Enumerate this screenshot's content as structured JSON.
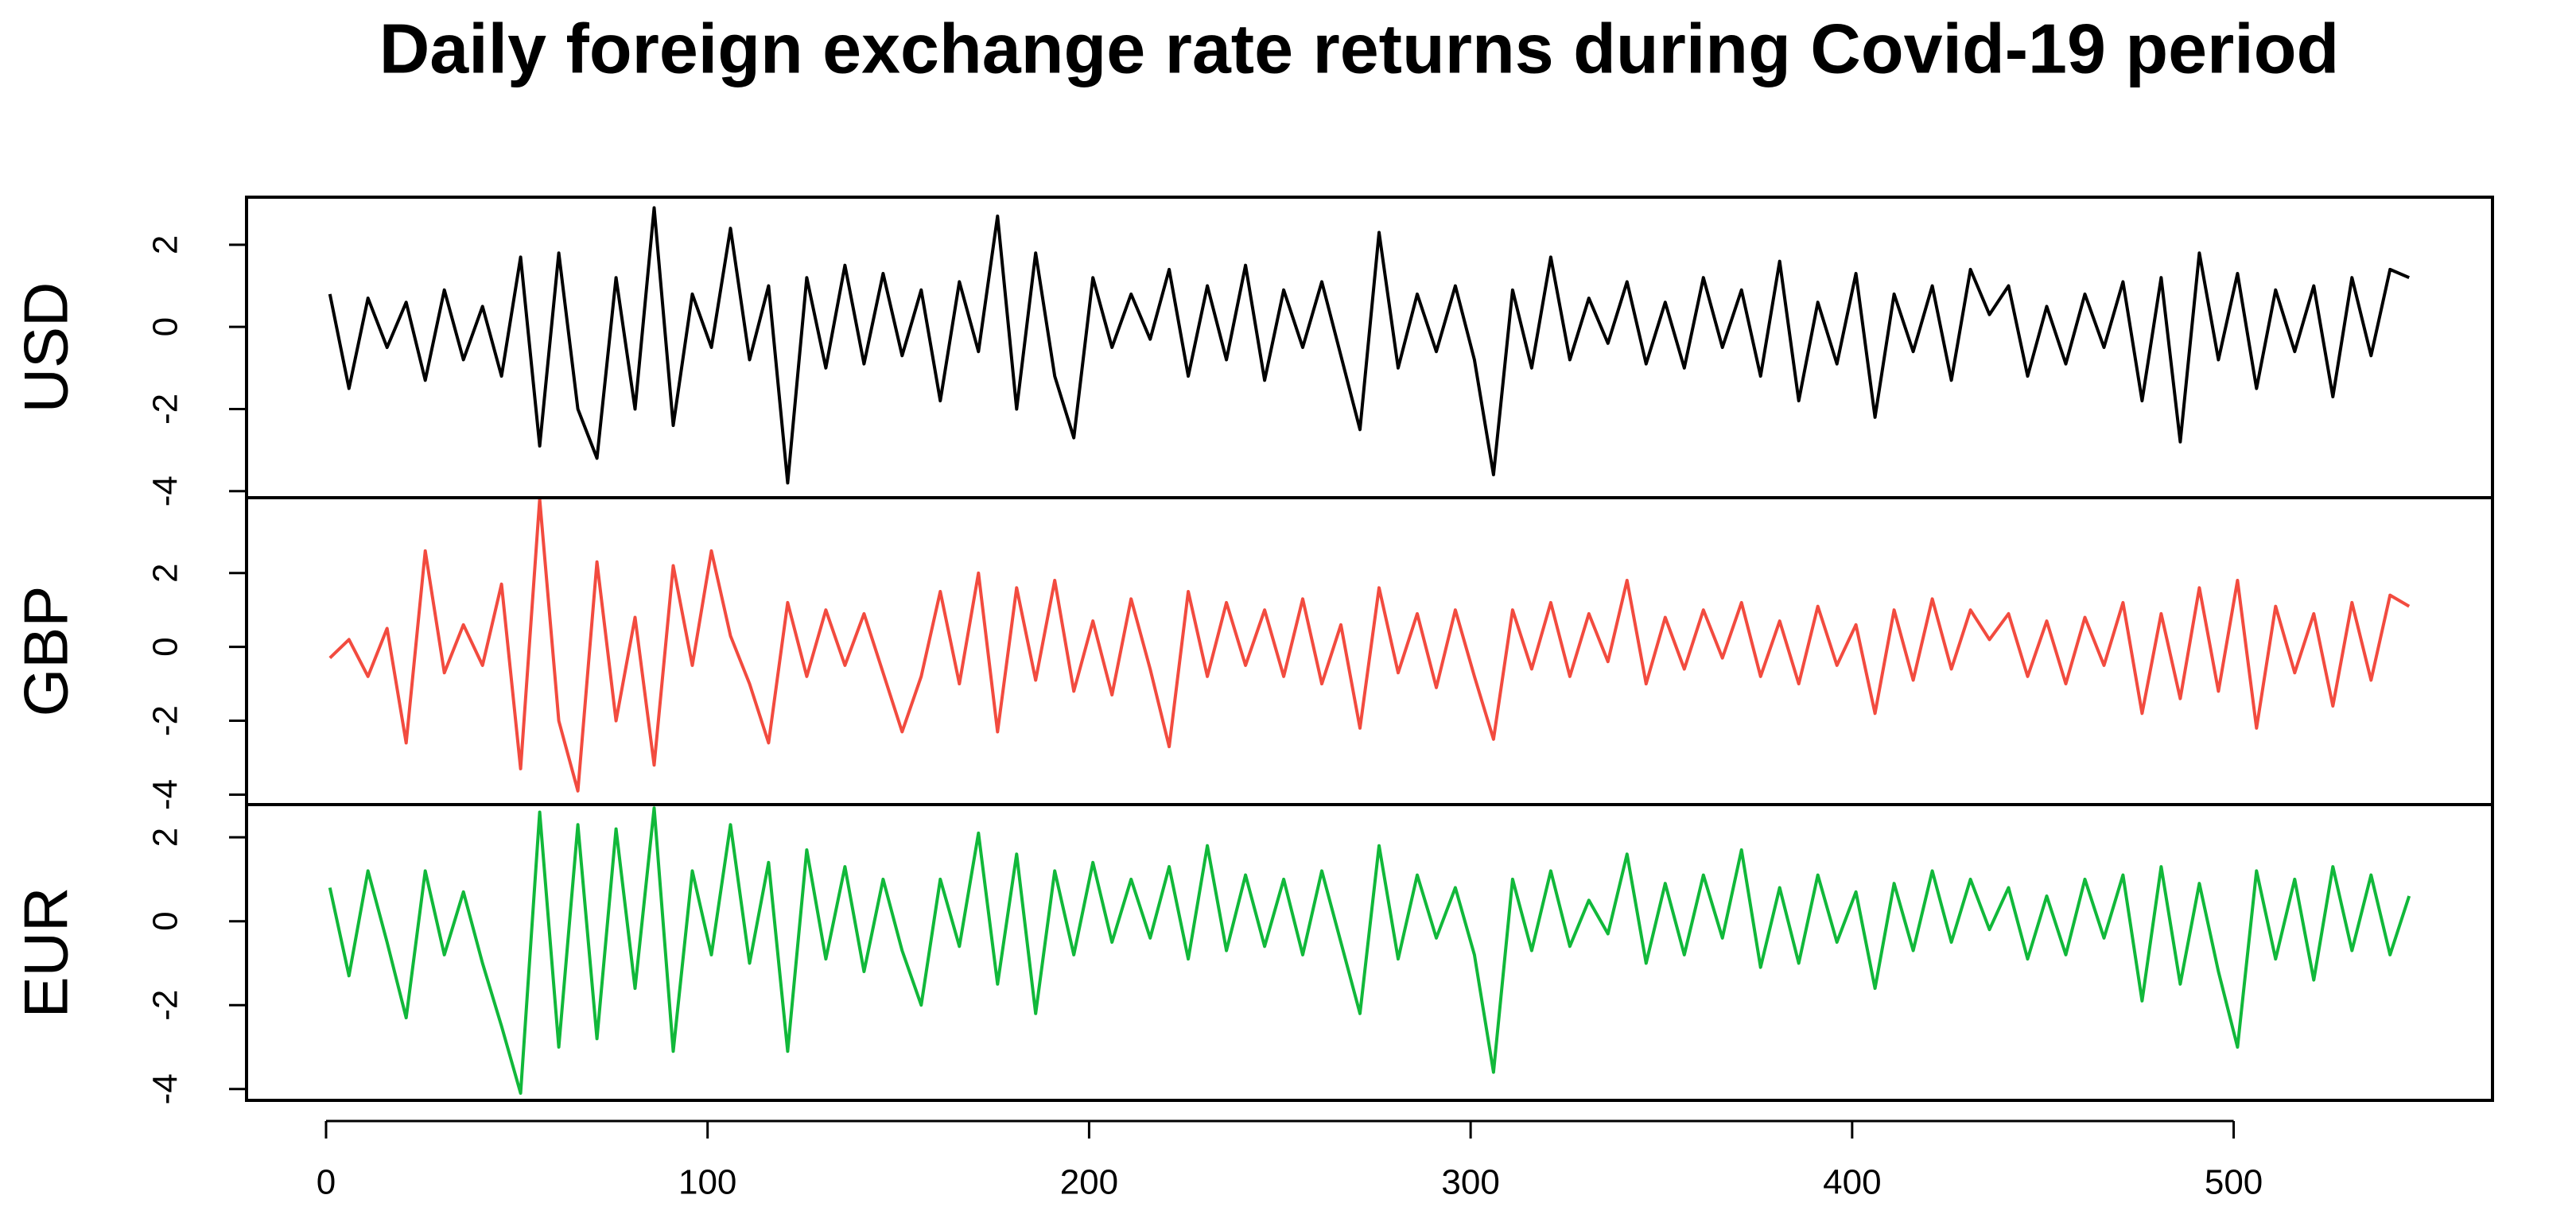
{
  "chart_data": {
    "type": "line",
    "title": "Daily foreign exchange rate returns during Covid-19 period",
    "x": [
      1,
      6,
      11,
      16,
      21,
      26,
      31,
      36,
      41,
      46,
      51,
      56,
      61,
      66,
      71,
      76,
      81,
      86,
      91,
      96,
      101,
      106,
      111,
      116,
      121,
      126,
      131,
      136,
      141,
      146,
      151,
      156,
      161,
      166,
      171,
      176,
      181,
      186,
      191,
      196,
      201,
      206,
      211,
      216,
      221,
      226,
      231,
      236,
      241,
      246,
      251,
      256,
      261,
      266,
      271,
      276,
      281,
      286,
      291,
      296,
      301,
      306,
      311,
      316,
      321,
      326,
      331,
      336,
      341,
      346,
      351,
      356,
      361,
      366,
      371,
      376,
      381,
      386,
      391,
      396,
      401,
      406,
      411,
      416,
      421,
      426,
      431,
      436,
      441,
      446,
      451,
      456,
      461,
      466,
      471,
      476,
      481,
      486,
      491,
      496,
      501,
      506,
      511,
      516,
      521,
      526,
      531,
      536,
      541,
      546
    ],
    "xlim": [
      -20.84,
      567.84
    ],
    "xticks": [
      0,
      100,
      200,
      300,
      400,
      500
    ],
    "series": [
      {
        "name": "USD",
        "color": "#000000",
        "ylim": [
          -4.16,
          3.16
        ],
        "yticks": [
          -4,
          -2,
          0,
          2
        ],
        "values": [
          0.8,
          -1.5,
          0.7,
          -0.5,
          0.6,
          -1.3,
          0.9,
          -0.8,
          0.5,
          -1.2,
          1.7,
          -2.9,
          1.8,
          -2.0,
          -3.2,
          1.2,
          -2.0,
          2.9,
          -2.4,
          0.8,
          -0.5,
          2.4,
          -0.8,
          1.0,
          -3.8,
          1.2,
          -1.0,
          1.5,
          -0.9,
          1.3,
          -0.7,
          0.9,
          -1.8,
          1.1,
          -0.6,
          2.7,
          -2.0,
          1.8,
          -1.2,
          -2.7,
          1.2,
          -0.5,
          0.8,
          -0.3,
          1.4,
          -1.2,
          1.0,
          -0.8,
          1.5,
          -1.3,
          0.9,
          -0.5,
          1.1,
          -0.7,
          -2.5,
          2.3,
          -1.0,
          0.8,
          -0.6,
          1.0,
          -0.8,
          -3.6,
          0.9,
          -1.0,
          1.7,
          -0.8,
          0.7,
          -0.4,
          1.1,
          -0.9,
          0.6,
          -1.0,
          1.2,
          -0.5,
          0.9,
          -1.2,
          1.6,
          -1.8,
          0.6,
          -0.9,
          1.3,
          -2.2,
          0.8,
          -0.6,
          1.0,
          -1.3,
          1.4,
          0.3,
          1.0,
          -1.2,
          0.5,
          -0.9,
          0.8,
          -0.5,
          1.1,
          -1.8,
          1.2,
          -2.8,
          1.8,
          -0.8,
          1.3,
          -1.5,
          0.9,
          -0.6,
          1.0,
          -1.7,
          1.2,
          -0.7,
          1.4,
          1.2
        ]
      },
      {
        "name": "GBP",
        "color": "#f24b3f",
        "ylim": [
          -4.27,
          4.04
        ],
        "yticks": [
          -4,
          -2,
          0,
          2
        ],
        "values": [
          -0.3,
          0.2,
          -0.8,
          0.5,
          -2.6,
          2.6,
          -0.7,
          0.6,
          -0.5,
          1.7,
          -3.3,
          4.0,
          -2.0,
          -3.9,
          2.3,
          -2.0,
          0.8,
          -3.2,
          2.2,
          -0.5,
          2.6,
          0.3,
          -1.0,
          -2.6,
          1.2,
          -0.8,
          1.0,
          -0.5,
          0.9,
          -0.7,
          -2.3,
          -0.8,
          1.5,
          -1.0,
          2.0,
          -2.3,
          1.6,
          -0.9,
          1.8,
          -1.2,
          0.7,
          -1.3,
          1.3,
          -0.6,
          -2.7,
          1.5,
          -0.8,
          1.2,
          -0.5,
          1.0,
          -0.8,
          1.3,
          -1.0,
          0.6,
          -2.2,
          1.6,
          -0.7,
          0.9,
          -1.1,
          1.0,
          -0.8,
          -2.5,
          1.0,
          -0.6,
          1.2,
          -0.8,
          0.9,
          -0.4,
          1.8,
          -1.0,
          0.8,
          -0.6,
          1.0,
          -0.3,
          1.2,
          -0.8,
          0.7,
          -1.0,
          1.1,
          -0.5,
          0.6,
          -1.8,
          1.0,
          -0.9,
          1.3,
          -0.6,
          1.0,
          0.2,
          0.9,
          -0.8,
          0.7,
          -1.0,
          0.8,
          -0.5,
          1.2,
          -1.8,
          0.9,
          -1.4,
          1.6,
          -1.2,
          1.8,
          -2.2,
          1.1,
          -0.7,
          0.9,
          -1.6,
          1.2,
          -0.9,
          1.4,
          1.1
        ]
      },
      {
        "name": "EUR",
        "color": "#11b83a",
        "ylim": [
          -4.27,
          2.78
        ],
        "yticks": [
          -4,
          -2,
          0,
          2
        ],
        "values": [
          0.8,
          -1.3,
          1.2,
          -0.5,
          -2.3,
          1.2,
          -0.8,
          0.7,
          -1.0,
          -2.5,
          -4.1,
          2.6,
          -3.0,
          2.3,
          -2.8,
          2.2,
          -1.6,
          2.7,
          -3.1,
          1.2,
          -0.8,
          2.3,
          -1.0,
          1.4,
          -3.1,
          1.7,
          -0.9,
          1.3,
          -1.2,
          1.0,
          -0.7,
          -2.0,
          1.0,
          -0.6,
          2.1,
          -1.5,
          1.6,
          -2.2,
          1.2,
          -0.8,
          1.4,
          -0.5,
          1.0,
          -0.4,
          1.3,
          -0.9,
          1.8,
          -0.7,
          1.1,
          -0.6,
          1.0,
          -0.8,
          1.2,
          -0.5,
          -2.2,
          1.8,
          -0.9,
          1.1,
          -0.4,
          0.8,
          -0.8,
          -3.6,
          1.0,
          -0.7,
          1.2,
          -0.6,
          0.5,
          -0.3,
          1.6,
          -1.0,
          0.9,
          -0.8,
          1.1,
          -0.4,
          1.7,
          -1.1,
          0.8,
          -1.0,
          1.1,
          -0.5,
          0.7,
          -1.6,
          0.9,
          -0.7,
          1.2,
          -0.5,
          1.0,
          -0.2,
          0.8,
          -0.9,
          0.6,
          -0.8,
          1.0,
          -0.4,
          1.1,
          -1.9,
          1.3,
          -1.5,
          0.9,
          -1.2,
          -3.0,
          1.2,
          -0.9,
          1.0,
          -1.4,
          1.3,
          -0.7,
          1.1,
          -0.8,
          0.6
        ]
      }
    ]
  }
}
